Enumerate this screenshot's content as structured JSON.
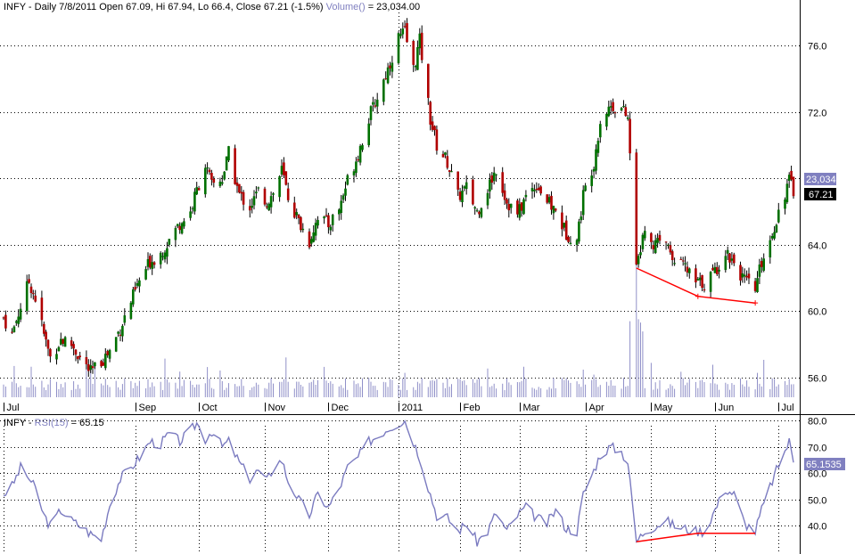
{
  "header": {
    "ticker": "INFY",
    "price_text": "INFY - Daily 7/8/2011 Open 67.09, Hi 67.94, Lo 66.4, Close 67.21 (-1.5%)",
    "volume_label": "Volume()",
    "volume_value": " = 23,034.00"
  },
  "rsi_header": {
    "prefix": "INFY - ",
    "indicator": "RSI(15)",
    "value": " = 65.15"
  },
  "colors": {
    "up": "#007000",
    "down": "#b00000",
    "volume": "#9090c8",
    "rsi_line": "#7b7bc0",
    "divergence": "#ff0000",
    "grid": "#000000",
    "badge_close_bg": "#000000",
    "badge_volume_bg": "#8080c0",
    "badge_rsi_bg": "#8080c0"
  },
  "badges": {
    "volume": "23,034",
    "close": "67.21",
    "rsi": "65.1535"
  },
  "chart_data": [
    {
      "type": "candlestick",
      "title": "INFY - Daily 7/8/2011",
      "x_range": [
        "2010-07-01",
        "2011-07-08"
      ],
      "ylim": [
        54.5,
        78.0
      ],
      "y_ticks": [
        56.0,
        60.0,
        64.0,
        68.0,
        72.0,
        76.0
      ],
      "y_tick_labels": [
        "56.0",
        "60.0",
        "64.0",
        "68.0",
        "72.0",
        "76.0"
      ],
      "month_labels": [
        {
          "date": "2010-07-01",
          "label": "Jul"
        },
        {
          "date": "2010-09-01",
          "label": "Sep"
        },
        {
          "date": "2010-10-01",
          "label": "Oct"
        },
        {
          "date": "2010-11-01",
          "label": "Nov"
        },
        {
          "date": "2010-12-01",
          "label": "Dec"
        },
        {
          "date": "2011-01-03",
          "label": "2011"
        },
        {
          "date": "2011-02-01",
          "label": "Feb"
        },
        {
          "date": "2011-03-01",
          "label": "Mar"
        },
        {
          "date": "2011-04-01",
          "label": "Apr"
        },
        {
          "date": "2011-05-02",
          "label": "May"
        },
        {
          "date": "2011-06-01",
          "label": "Jun"
        },
        {
          "date": "2011-07-01",
          "label": "Jul"
        }
      ],
      "close_path": [
        [
          "2010-07-01",
          59.6
        ],
        [
          "2010-07-05",
          58.6
        ],
        [
          "2010-07-09",
          60.3
        ],
        [
          "2010-07-13",
          61.8
        ],
        [
          "2010-07-16",
          60.8
        ],
        [
          "2010-07-20",
          58.6
        ],
        [
          "2010-07-23",
          57.2
        ],
        [
          "2010-07-28",
          58.3
        ],
        [
          "2010-08-02",
          58.0
        ],
        [
          "2010-08-06",
          57.2
        ],
        [
          "2010-08-11",
          56.3
        ],
        [
          "2010-08-16",
          57.0
        ],
        [
          "2010-08-20",
          57.6
        ],
        [
          "2010-08-25",
          59.0
        ],
        [
          "2010-08-30",
          60.6
        ],
        [
          "2010-09-03",
          61.8
        ],
        [
          "2010-09-08",
          63.0
        ],
        [
          "2010-09-13",
          63.5
        ],
        [
          "2010-09-17",
          64.3
        ],
        [
          "2010-09-22",
          65.3
        ],
        [
          "2010-09-27",
          66.0
        ],
        [
          "2010-09-30",
          67.3
        ],
        [
          "2010-10-04",
          68.8
        ],
        [
          "2010-10-07",
          67.6
        ],
        [
          "2010-10-12",
          68.0
        ],
        [
          "2010-10-15",
          69.5
        ],
        [
          "2010-10-20",
          67.0
        ],
        [
          "2010-10-25",
          66.3
        ],
        [
          "2010-10-29",
          67.2
        ],
        [
          "2010-11-02",
          66.6
        ],
        [
          "2010-11-05",
          67.1
        ],
        [
          "2010-11-09",
          68.5
        ],
        [
          "2010-11-12",
          66.9
        ],
        [
          "2010-11-17",
          65.4
        ],
        [
          "2010-11-22",
          64.2
        ],
        [
          "2010-11-26",
          65.8
        ],
        [
          "2010-12-01",
          65.2
        ],
        [
          "2010-12-06",
          66.2
        ],
        [
          "2010-12-10",
          67.9
        ],
        [
          "2010-12-15",
          69.5
        ],
        [
          "2010-12-20",
          71.6
        ],
        [
          "2010-12-24",
          72.9
        ],
        [
          "2010-12-29",
          74.6
        ],
        [
          "2011-01-03",
          76.5
        ],
        [
          "2011-01-06",
          76.8
        ],
        [
          "2011-01-10",
          74.6
        ],
        [
          "2011-01-13",
          76.3
        ],
        [
          "2011-01-18",
          71.6
        ],
        [
          "2011-01-21",
          70.0
        ],
        [
          "2011-01-26",
          69.0
        ],
        [
          "2011-01-31",
          66.9
        ],
        [
          "2011-02-04",
          67.4
        ],
        [
          "2011-02-09",
          66.0
        ],
        [
          "2011-02-14",
          67.4
        ],
        [
          "2011-02-18",
          68.6
        ],
        [
          "2011-02-23",
          66.6
        ],
        [
          "2011-02-28",
          65.8
        ],
        [
          "2011-03-04",
          66.9
        ],
        [
          "2011-03-09",
          67.7
        ],
        [
          "2011-03-14",
          66.6
        ],
        [
          "2011-03-18",
          66.0
        ],
        [
          "2011-03-23",
          64.7
        ],
        [
          "2011-03-28",
          64.3
        ],
        [
          "2011-03-31",
          67.0
        ],
        [
          "2011-04-05",
          69.0
        ],
        [
          "2011-04-08",
          71.5
        ],
        [
          "2011-04-13",
          72.4
        ],
        [
          "2011-04-18",
          72.2
        ],
        [
          "2011-04-21",
          71.6
        ],
        [
          "2011-04-25",
          63.0
        ],
        [
          "2011-04-29",
          64.8
        ],
        [
          "2011-05-04",
          64.0
        ],
        [
          "2011-05-09",
          64.2
        ],
        [
          "2011-05-13",
          63.3
        ],
        [
          "2011-05-18",
          62.6
        ],
        [
          "2011-05-23",
          61.7
        ],
        [
          "2011-05-27",
          61.7
        ],
        [
          "2011-06-01",
          62.4
        ],
        [
          "2011-06-06",
          63.6
        ],
        [
          "2011-06-10",
          63.0
        ],
        [
          "2011-06-15",
          61.8
        ],
        [
          "2011-06-20",
          61.3
        ],
        [
          "2011-06-23",
          63.0
        ],
        [
          "2011-06-28",
          64.7
        ],
        [
          "2011-07-01",
          66.0
        ],
        [
          "2011-07-06",
          67.9
        ],
        [
          "2011-07-08",
          67.21
        ]
      ],
      "volume_relative": "bars at the bottom of the price pane; large spike on 2011-04-25",
      "divergence_line": [
        [
          "2011-04-25",
          62.6
        ],
        [
          "2011-05-24",
          60.9
        ],
        [
          "2011-06-20",
          60.5
        ]
      ]
    },
    {
      "type": "line",
      "title": "RSI(15)",
      "x_range": [
        "2010-07-01",
        "2011-07-08"
      ],
      "ylim": [
        30.0,
        82.0
      ],
      "y_ticks": [
        40.0,
        50.0,
        60.0,
        70.0,
        80.0
      ],
      "y_tick_labels": [
        "40.0",
        "50.0",
        "60.0",
        "70.0",
        "80.0"
      ],
      "values": [
        [
          "2010-07-01",
          52
        ],
        [
          "2010-07-05",
          55
        ],
        [
          "2010-07-09",
          62
        ],
        [
          "2010-07-13",
          58
        ],
        [
          "2010-07-16",
          54
        ],
        [
          "2010-07-20",
          44
        ],
        [
          "2010-07-23",
          40
        ],
        [
          "2010-07-28",
          46
        ],
        [
          "2010-08-02",
          42
        ],
        [
          "2010-08-06",
          40
        ],
        [
          "2010-08-11",
          37
        ],
        [
          "2010-08-16",
          35
        ],
        [
          "2010-08-20",
          48
        ],
        [
          "2010-08-25",
          58
        ],
        [
          "2010-08-30",
          62
        ],
        [
          "2010-09-03",
          66
        ],
        [
          "2010-09-08",
          72
        ],
        [
          "2010-09-13",
          71
        ],
        [
          "2010-09-17",
          75
        ],
        [
          "2010-09-22",
          72
        ],
        [
          "2010-09-27",
          76
        ],
        [
          "2010-09-30",
          79
        ],
        [
          "2010-10-04",
          73
        ],
        [
          "2010-10-07",
          76
        ],
        [
          "2010-10-12",
          70
        ],
        [
          "2010-10-15",
          72
        ],
        [
          "2010-10-20",
          64
        ],
        [
          "2010-10-25",
          58
        ],
        [
          "2010-10-29",
          61
        ],
        [
          "2010-11-02",
          57
        ],
        [
          "2010-11-05",
          62
        ],
        [
          "2010-11-09",
          65
        ],
        [
          "2010-11-12",
          57
        ],
        [
          "2010-11-17",
          50
        ],
        [
          "2010-11-22",
          44
        ],
        [
          "2010-11-26",
          52
        ],
        [
          "2010-12-01",
          47
        ],
        [
          "2010-12-06",
          54
        ],
        [
          "2010-12-10",
          62
        ],
        [
          "2010-12-15",
          66
        ],
        [
          "2010-12-20",
          72
        ],
        [
          "2010-12-24",
          74
        ],
        [
          "2010-12-29",
          77
        ],
        [
          "2011-01-03",
          79
        ],
        [
          "2011-01-06",
          80
        ],
        [
          "2011-01-10",
          72
        ],
        [
          "2011-01-13",
          66
        ],
        [
          "2011-01-18",
          52
        ],
        [
          "2011-01-21",
          44
        ],
        [
          "2011-01-26",
          43
        ],
        [
          "2011-01-31",
          38
        ],
        [
          "2011-02-04",
          41
        ],
        [
          "2011-02-09",
          34
        ],
        [
          "2011-02-14",
          38
        ],
        [
          "2011-02-18",
          45
        ],
        [
          "2011-02-23",
          38
        ],
        [
          "2011-02-28",
          44
        ],
        [
          "2011-03-04",
          47
        ],
        [
          "2011-03-09",
          43
        ],
        [
          "2011-03-14",
          41
        ],
        [
          "2011-03-18",
          46
        ],
        [
          "2011-03-23",
          39
        ],
        [
          "2011-03-28",
          38
        ],
        [
          "2011-03-31",
          52
        ],
        [
          "2011-04-05",
          61
        ],
        [
          "2011-04-08",
          67
        ],
        [
          "2011-04-13",
          70
        ],
        [
          "2011-04-18",
          68
        ],
        [
          "2011-04-21",
          64
        ],
        [
          "2011-04-25",
          34
        ],
        [
          "2011-04-29",
          38
        ],
        [
          "2011-05-04",
          40
        ],
        [
          "2011-05-09",
          42
        ],
        [
          "2011-05-13",
          40
        ],
        [
          "2011-05-18",
          39
        ],
        [
          "2011-05-23",
          38
        ],
        [
          "2011-05-27",
          38
        ],
        [
          "2011-06-01",
          46
        ],
        [
          "2011-06-06",
          54
        ],
        [
          "2011-06-10",
          52
        ],
        [
          "2011-06-15",
          41
        ],
        [
          "2011-06-20",
          38
        ],
        [
          "2011-06-23",
          46
        ],
        [
          "2011-06-28",
          57
        ],
        [
          "2011-07-01",
          63
        ],
        [
          "2011-07-06",
          72
        ],
        [
          "2011-07-08",
          65.15
        ]
      ],
      "divergence_line": [
        [
          "2011-04-25",
          34.0
        ],
        [
          "2011-05-24",
          37.2
        ],
        [
          "2011-06-20",
          37.2
        ]
      ]
    }
  ]
}
